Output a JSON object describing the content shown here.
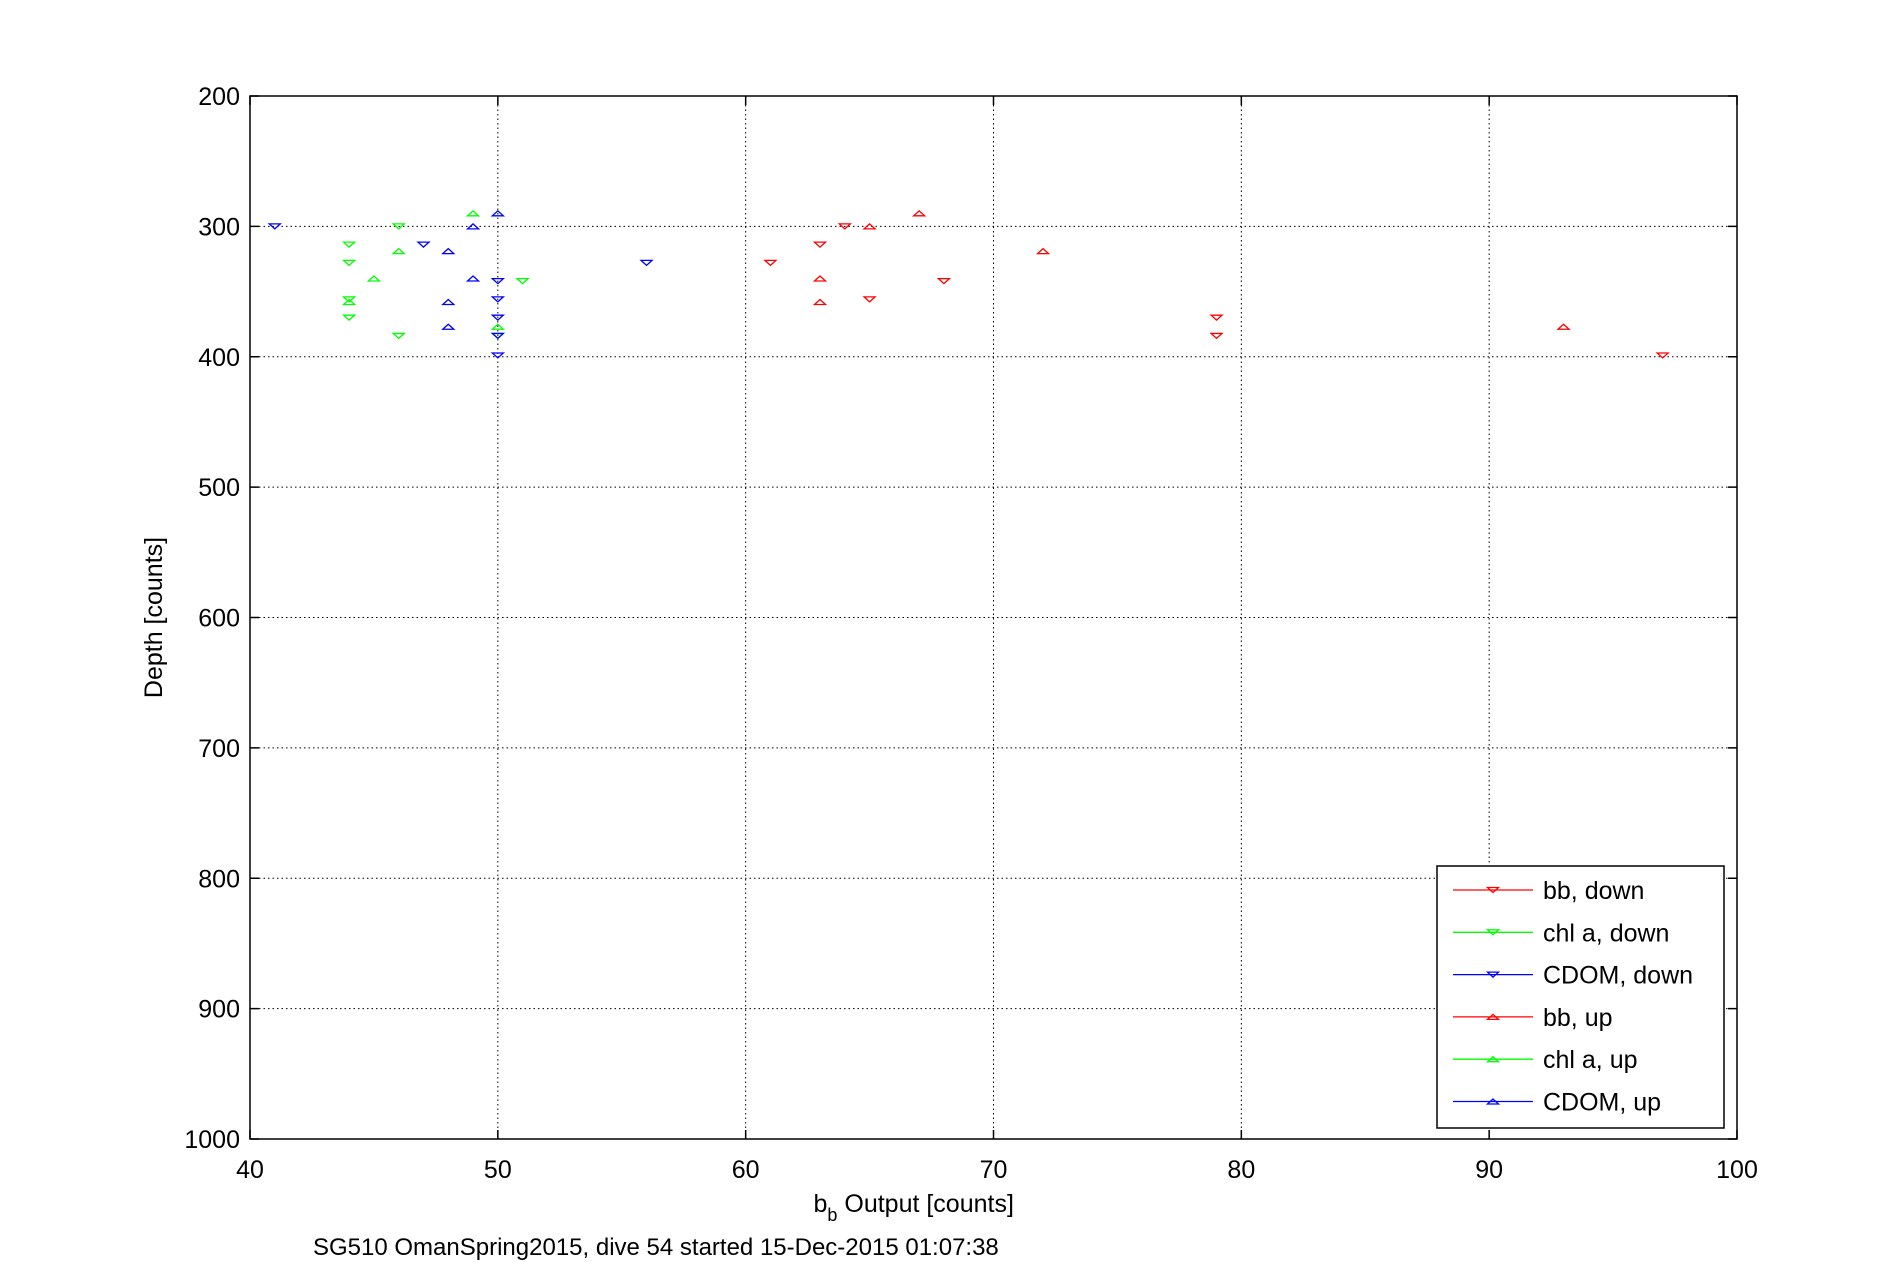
{
  "chart_data": {
    "type": "scatter",
    "xlabel_main": "b",
    "xlabel_sub": "b",
    "xlabel_rest": " Output [counts]",
    "ylabel": "Depth [counts]",
    "caption": "SG510 OmanSpring2015, dive 54 started 15-Dec-2015 01:07:38",
    "xlim": [
      40,
      100
    ],
    "ylim": [
      200,
      1000
    ],
    "y_reversed": true,
    "grid": true,
    "legend_position": "bottom-right",
    "x_ticks": [
      "40",
      "50",
      "60",
      "70",
      "80",
      "90",
      "100"
    ],
    "y_ticks": [
      "200",
      "300",
      "400",
      "500",
      "600",
      "700",
      "800",
      "900",
      "1000"
    ],
    "series": [
      {
        "name": "bb, down",
        "color": "#ff0000",
        "marker": "triangle-down",
        "points": [
          [
            61,
            328
          ],
          [
            63,
            314
          ],
          [
            64,
            300
          ],
          [
            65,
            356
          ],
          [
            68,
            342
          ],
          [
            79,
            370
          ],
          [
            79,
            384
          ],
          [
            97,
            399
          ]
        ]
      },
      {
        "name": "chl a, down",
        "color": "#00ff00",
        "marker": "triangle-down",
        "points": [
          [
            44,
            314
          ],
          [
            44,
            328
          ],
          [
            44,
            356
          ],
          [
            44,
            370
          ],
          [
            46,
            300
          ],
          [
            46,
            384
          ],
          [
            50,
            384
          ],
          [
            51,
            342
          ]
        ]
      },
      {
        "name": "CDOM, down",
        "color": "#0000ff",
        "marker": "triangle-down",
        "points": [
          [
            41,
            300
          ],
          [
            47,
            314
          ],
          [
            50,
            342
          ],
          [
            50,
            356
          ],
          [
            50,
            370
          ],
          [
            50,
            384
          ],
          [
            50,
            399
          ],
          [
            56,
            328
          ]
        ]
      },
      {
        "name": "bb, up",
        "color": "#ff0000",
        "marker": "triangle-up",
        "points": [
          [
            63,
            340
          ],
          [
            63,
            358
          ],
          [
            65,
            300
          ],
          [
            67,
            290
          ],
          [
            72,
            319
          ],
          [
            93,
            377
          ]
        ]
      },
      {
        "name": "chl a, up",
        "color": "#00ff00",
        "marker": "triangle-up",
        "points": [
          [
            44,
            358
          ],
          [
            45,
            340
          ],
          [
            46,
            319
          ],
          [
            49,
            290
          ],
          [
            50,
            377
          ]
        ]
      },
      {
        "name": "CDOM, up",
        "color": "#0000ff",
        "marker": "triangle-up",
        "points": [
          [
            48,
            319
          ],
          [
            48,
            358
          ],
          [
            48,
            377
          ],
          [
            49,
            300
          ],
          [
            49,
            340
          ],
          [
            50,
            290
          ]
        ]
      }
    ]
  }
}
